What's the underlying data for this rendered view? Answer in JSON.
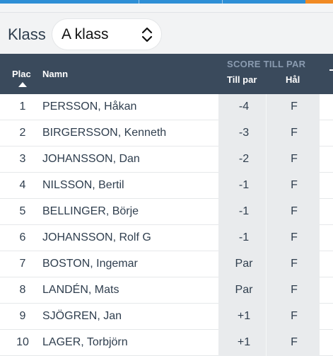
{
  "filter": {
    "label": "Klass",
    "selected": "A klass",
    "icon": "chevron-updown-icon"
  },
  "table": {
    "headers": {
      "plac": "Plac",
      "namn": "Namn",
      "group": "SCORE TILL PAR",
      "tillpar": "Till par",
      "hal": "Hål"
    },
    "sort_icon": "sort-asc-icon",
    "rows": [
      {
        "plac": "1",
        "name": "PERSSON, Håkan",
        "score": "-4",
        "hole": "F"
      },
      {
        "plac": "2",
        "name": "BIRGERSSON, Kenneth",
        "score": "-3",
        "hole": "F"
      },
      {
        "plac": "3",
        "name": "JOHANSSON, Dan",
        "score": "-2",
        "hole": "F"
      },
      {
        "plac": "4",
        "name": "NILSSON, Bertil",
        "score": "-1",
        "hole": "F"
      },
      {
        "plac": "5",
        "name": "BELLINGER, Börje",
        "score": "-1",
        "hole": "F"
      },
      {
        "plac": "6",
        "name": "JOHANSSON, Rolf G",
        "score": "-1",
        "hole": "F"
      },
      {
        "plac": "7",
        "name": "BOSTON, Ingemar",
        "score": "Par",
        "hole": "F"
      },
      {
        "plac": "8",
        "name": "LANDÉN, Mats",
        "score": "Par",
        "hole": "F"
      },
      {
        "plac": "9",
        "name": "SJÖGREN, Jan",
        "score": "+1",
        "hole": "F"
      },
      {
        "plac": "10",
        "name": "LAGER, Torbjörn",
        "score": "+1",
        "hole": "F"
      }
    ]
  },
  "colors": {
    "header_bg": "#3a4a5c",
    "accent_blue": "#2e8fd6",
    "accent_orange": "#f08a24",
    "score_shade": "#e9ebed"
  }
}
